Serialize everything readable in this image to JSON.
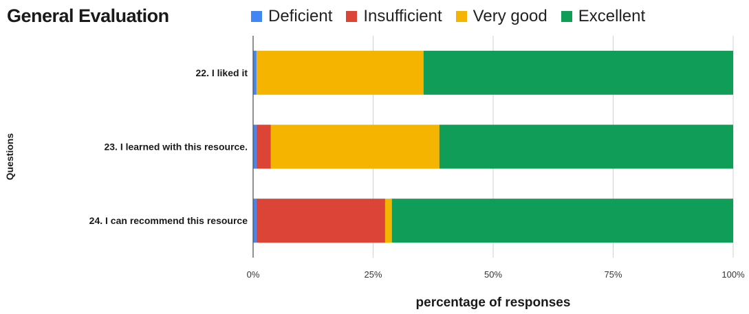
{
  "chart_data": {
    "type": "bar",
    "orientation": "horizontal",
    "stacked": true,
    "title": "General Evaluation",
    "xlabel": "percentage of responses",
    "ylabel": "Questions",
    "categories": [
      "22. I liked it",
      "23. I learned with this resource.",
      "24. I can recommend this resource"
    ],
    "series": [
      {
        "name": "Deficient",
        "color": "#4285f4",
        "values": [
          0.7,
          0.7,
          0.7
        ]
      },
      {
        "name": "Insufficient",
        "color": "#db4437",
        "values": [
          0,
          3,
          26.8
        ]
      },
      {
        "name": "Very good",
        "color": "#f4b400",
        "values": [
          34.8,
          35.1,
          1.4
        ]
      },
      {
        "name": "Excellent",
        "color": "#0f9d58",
        "values": [
          64.5,
          61.2,
          71.1
        ]
      }
    ],
    "xlim": [
      0,
      100
    ],
    "xticks": [
      "0%",
      "25%",
      "50%",
      "75%",
      "100%"
    ],
    "grid": true,
    "legend_position": "top"
  }
}
